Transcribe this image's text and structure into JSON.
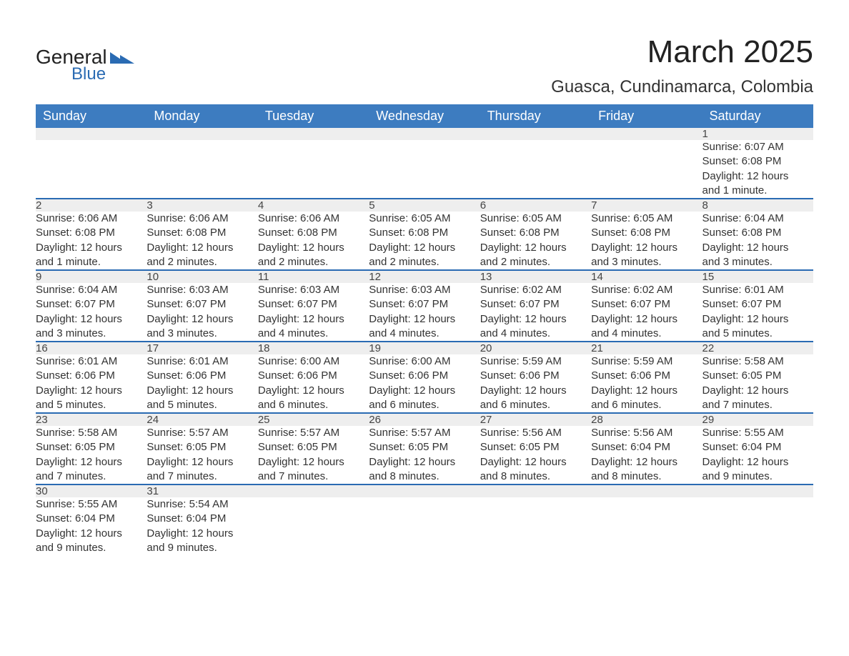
{
  "brand": {
    "line1": "General",
    "line2": "Blue"
  },
  "title": "March 2025",
  "location": "Guasca, Cundinamarca, Colombia",
  "colors": {
    "header_bg": "#3d7cc0",
    "header_text": "#ffffff",
    "row_border": "#2a6bb3",
    "daynum_bg": "#eeeeee",
    "page_bg": "#ffffff",
    "text": "#333333"
  },
  "fonts": {
    "title_size_pt": 33,
    "location_size_pt": 18,
    "header_size_pt": 14,
    "body_size_pt": 11,
    "daynum_size_pt": 13
  },
  "weekdays": [
    "Sunday",
    "Monday",
    "Tuesday",
    "Wednesday",
    "Thursday",
    "Friday",
    "Saturday"
  ],
  "weeks": [
    [
      null,
      null,
      null,
      null,
      null,
      null,
      {
        "n": "1",
        "sr": "Sunrise: 6:07 AM",
        "ss": "Sunset: 6:08 PM",
        "d1": "Daylight: 12 hours",
        "d2": "and 1 minute."
      }
    ],
    [
      {
        "n": "2",
        "sr": "Sunrise: 6:06 AM",
        "ss": "Sunset: 6:08 PM",
        "d1": "Daylight: 12 hours",
        "d2": "and 1 minute."
      },
      {
        "n": "3",
        "sr": "Sunrise: 6:06 AM",
        "ss": "Sunset: 6:08 PM",
        "d1": "Daylight: 12 hours",
        "d2": "and 2 minutes."
      },
      {
        "n": "4",
        "sr": "Sunrise: 6:06 AM",
        "ss": "Sunset: 6:08 PM",
        "d1": "Daylight: 12 hours",
        "d2": "and 2 minutes."
      },
      {
        "n": "5",
        "sr": "Sunrise: 6:05 AM",
        "ss": "Sunset: 6:08 PM",
        "d1": "Daylight: 12 hours",
        "d2": "and 2 minutes."
      },
      {
        "n": "6",
        "sr": "Sunrise: 6:05 AM",
        "ss": "Sunset: 6:08 PM",
        "d1": "Daylight: 12 hours",
        "d2": "and 2 minutes."
      },
      {
        "n": "7",
        "sr": "Sunrise: 6:05 AM",
        "ss": "Sunset: 6:08 PM",
        "d1": "Daylight: 12 hours",
        "d2": "and 3 minutes."
      },
      {
        "n": "8",
        "sr": "Sunrise: 6:04 AM",
        "ss": "Sunset: 6:08 PM",
        "d1": "Daylight: 12 hours",
        "d2": "and 3 minutes."
      }
    ],
    [
      {
        "n": "9",
        "sr": "Sunrise: 6:04 AM",
        "ss": "Sunset: 6:07 PM",
        "d1": "Daylight: 12 hours",
        "d2": "and 3 minutes."
      },
      {
        "n": "10",
        "sr": "Sunrise: 6:03 AM",
        "ss": "Sunset: 6:07 PM",
        "d1": "Daylight: 12 hours",
        "d2": "and 3 minutes."
      },
      {
        "n": "11",
        "sr": "Sunrise: 6:03 AM",
        "ss": "Sunset: 6:07 PM",
        "d1": "Daylight: 12 hours",
        "d2": "and 4 minutes."
      },
      {
        "n": "12",
        "sr": "Sunrise: 6:03 AM",
        "ss": "Sunset: 6:07 PM",
        "d1": "Daylight: 12 hours",
        "d2": "and 4 minutes."
      },
      {
        "n": "13",
        "sr": "Sunrise: 6:02 AM",
        "ss": "Sunset: 6:07 PM",
        "d1": "Daylight: 12 hours",
        "d2": "and 4 minutes."
      },
      {
        "n": "14",
        "sr": "Sunrise: 6:02 AM",
        "ss": "Sunset: 6:07 PM",
        "d1": "Daylight: 12 hours",
        "d2": "and 4 minutes."
      },
      {
        "n": "15",
        "sr": "Sunrise: 6:01 AM",
        "ss": "Sunset: 6:07 PM",
        "d1": "Daylight: 12 hours",
        "d2": "and 5 minutes."
      }
    ],
    [
      {
        "n": "16",
        "sr": "Sunrise: 6:01 AM",
        "ss": "Sunset: 6:06 PM",
        "d1": "Daylight: 12 hours",
        "d2": "and 5 minutes."
      },
      {
        "n": "17",
        "sr": "Sunrise: 6:01 AM",
        "ss": "Sunset: 6:06 PM",
        "d1": "Daylight: 12 hours",
        "d2": "and 5 minutes."
      },
      {
        "n": "18",
        "sr": "Sunrise: 6:00 AM",
        "ss": "Sunset: 6:06 PM",
        "d1": "Daylight: 12 hours",
        "d2": "and 6 minutes."
      },
      {
        "n": "19",
        "sr": "Sunrise: 6:00 AM",
        "ss": "Sunset: 6:06 PM",
        "d1": "Daylight: 12 hours",
        "d2": "and 6 minutes."
      },
      {
        "n": "20",
        "sr": "Sunrise: 5:59 AM",
        "ss": "Sunset: 6:06 PM",
        "d1": "Daylight: 12 hours",
        "d2": "and 6 minutes."
      },
      {
        "n": "21",
        "sr": "Sunrise: 5:59 AM",
        "ss": "Sunset: 6:06 PM",
        "d1": "Daylight: 12 hours",
        "d2": "and 6 minutes."
      },
      {
        "n": "22",
        "sr": "Sunrise: 5:58 AM",
        "ss": "Sunset: 6:05 PM",
        "d1": "Daylight: 12 hours",
        "d2": "and 7 minutes."
      }
    ],
    [
      {
        "n": "23",
        "sr": "Sunrise: 5:58 AM",
        "ss": "Sunset: 6:05 PM",
        "d1": "Daylight: 12 hours",
        "d2": "and 7 minutes."
      },
      {
        "n": "24",
        "sr": "Sunrise: 5:57 AM",
        "ss": "Sunset: 6:05 PM",
        "d1": "Daylight: 12 hours",
        "d2": "and 7 minutes."
      },
      {
        "n": "25",
        "sr": "Sunrise: 5:57 AM",
        "ss": "Sunset: 6:05 PM",
        "d1": "Daylight: 12 hours",
        "d2": "and 7 minutes."
      },
      {
        "n": "26",
        "sr": "Sunrise: 5:57 AM",
        "ss": "Sunset: 6:05 PM",
        "d1": "Daylight: 12 hours",
        "d2": "and 8 minutes."
      },
      {
        "n": "27",
        "sr": "Sunrise: 5:56 AM",
        "ss": "Sunset: 6:05 PM",
        "d1": "Daylight: 12 hours",
        "d2": "and 8 minutes."
      },
      {
        "n": "28",
        "sr": "Sunrise: 5:56 AM",
        "ss": "Sunset: 6:04 PM",
        "d1": "Daylight: 12 hours",
        "d2": "and 8 minutes."
      },
      {
        "n": "29",
        "sr": "Sunrise: 5:55 AM",
        "ss": "Sunset: 6:04 PM",
        "d1": "Daylight: 12 hours",
        "d2": "and 9 minutes."
      }
    ],
    [
      {
        "n": "30",
        "sr": "Sunrise: 5:55 AM",
        "ss": "Sunset: 6:04 PM",
        "d1": "Daylight: 12 hours",
        "d2": "and 9 minutes."
      },
      {
        "n": "31",
        "sr": "Sunrise: 5:54 AM",
        "ss": "Sunset: 6:04 PM",
        "d1": "Daylight: 12 hours",
        "d2": "and 9 minutes."
      },
      null,
      null,
      null,
      null,
      null
    ]
  ]
}
